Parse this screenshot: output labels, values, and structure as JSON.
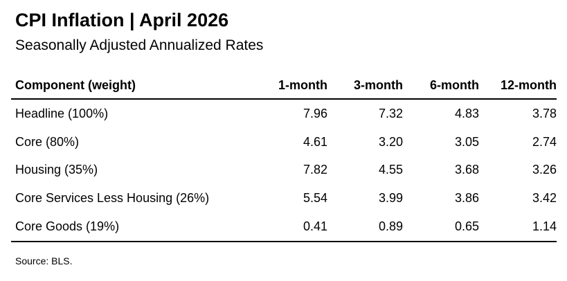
{
  "chart_data": {
    "type": "table",
    "title": "CPI Inflation | April 2026",
    "subtitle": "Seasonally Adjusted Annualized Rates",
    "columns": [
      "Component (weight)",
      "1-month",
      "3-month",
      "6-month",
      "12-month"
    ],
    "rows": [
      {
        "label": "Headline (100%)",
        "values": [
          "7.96",
          "7.32",
          "4.83",
          "3.78"
        ]
      },
      {
        "label": "Core (80%)",
        "values": [
          "4.61",
          "3.20",
          "3.05",
          "2.74"
        ]
      },
      {
        "label": "Housing (35%)",
        "values": [
          "7.82",
          "4.55",
          "3.68",
          "3.26"
        ]
      },
      {
        "label": "Core Services Less Housing (26%)",
        "values": [
          "5.54",
          "3.99",
          "3.86",
          "3.42"
        ]
      },
      {
        "label": "Core Goods (19%)",
        "values": [
          "0.41",
          "0.89",
          "0.65",
          "1.14"
        ]
      }
    ],
    "source": "Source: BLS."
  }
}
